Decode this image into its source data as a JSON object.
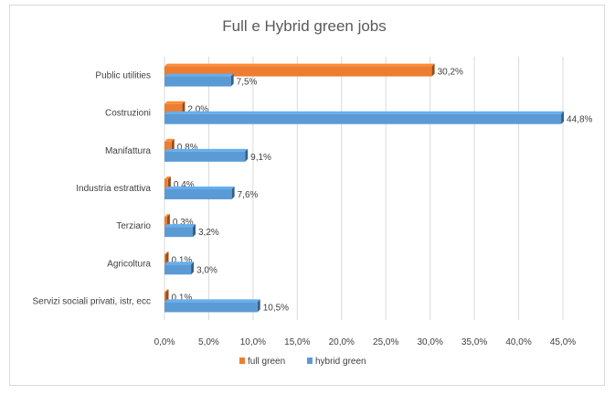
{
  "chart_data": {
    "type": "bar",
    "orientation": "horizontal",
    "title": "Full e Hybrid green jobs",
    "categories": [
      "Public utilities",
      "Costruzioni",
      "Manifattura",
      "Industria estrattiva",
      "Terziario",
      "Agricoltura",
      "Servizi sociali privati, istr, ecc"
    ],
    "series": [
      {
        "name": "full green",
        "color": "#ed7d31",
        "values": [
          30.2,
          2.0,
          0.8,
          0.4,
          0.3,
          0.1,
          0.1
        ],
        "labels": [
          "30,2%",
          "2,0%",
          "0,8%",
          "0,4%",
          "0,3%",
          "0,1%",
          "0,1%"
        ]
      },
      {
        "name": "hybrid green",
        "color": "#5b9bd5",
        "values": [
          7.5,
          44.8,
          9.1,
          7.6,
          3.2,
          3.0,
          10.5
        ],
        "labels": [
          "7,5%",
          "44,8%",
          "9,1%",
          "7,6%",
          "3,2%",
          "3,0%",
          "10,5%"
        ]
      }
    ],
    "xlim": [
      0,
      45
    ],
    "xticks": [
      "0,0%",
      "5,0%",
      "10,0%",
      "15,0%",
      "20,0%",
      "25,0%",
      "30,0%",
      "35,0%",
      "40,0%",
      "45,0%"
    ],
    "grid": true,
    "legend_position": "bottom"
  }
}
